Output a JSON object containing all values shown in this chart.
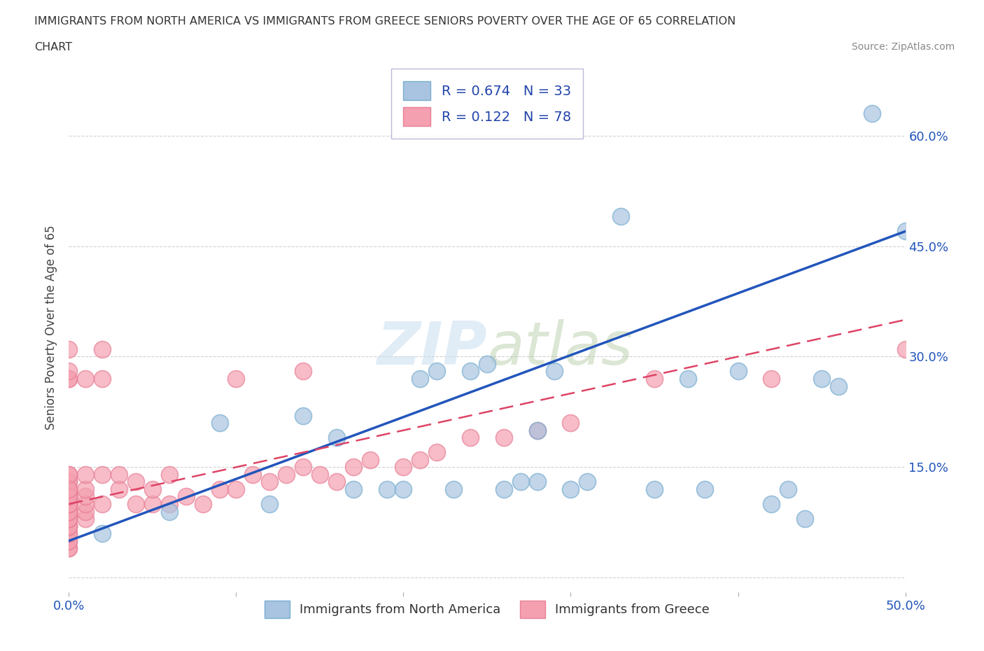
{
  "title_line1": "IMMIGRANTS FROM NORTH AMERICA VS IMMIGRANTS FROM GREECE SENIORS POVERTY OVER THE AGE OF 65 CORRELATION",
  "title_line2": "CHART",
  "source": "Source: ZipAtlas.com",
  "ylabel": "Seniors Poverty Over the Age of 65",
  "xlim": [
    0.0,
    0.5
  ],
  "ylim": [
    -0.02,
    0.7
  ],
  "yticks": [
    0.0,
    0.15,
    0.3,
    0.45,
    0.6
  ],
  "ytick_labels": [
    "",
    "15.0%",
    "30.0%",
    "45.0%",
    "60.0%"
  ],
  "xtick_labels": [
    "0.0%",
    "50.0%"
  ],
  "legend_blue_R": "0.674",
  "legend_blue_N": "33",
  "legend_pink_R": "0.122",
  "legend_pink_N": "78",
  "watermark_text": "ZIPatlas",
  "blue_color": "#a8c4e0",
  "pink_color": "#f4a0b0",
  "blue_edge_color": "#7aaed0",
  "pink_edge_color": "#e88098",
  "blue_line_color": "#2255bb",
  "pink_line_color": "#dd4466",
  "blue_scatter_x": [
    0.02,
    0.06,
    0.09,
    0.12,
    0.14,
    0.16,
    0.17,
    0.19,
    0.2,
    0.21,
    0.22,
    0.23,
    0.24,
    0.25,
    0.26,
    0.27,
    0.28,
    0.28,
    0.29,
    0.3,
    0.31,
    0.33,
    0.35,
    0.37,
    0.38,
    0.4,
    0.42,
    0.43,
    0.44,
    0.45,
    0.46,
    0.48,
    0.5
  ],
  "blue_scatter_y": [
    0.06,
    0.09,
    0.21,
    0.1,
    0.22,
    0.19,
    0.12,
    0.12,
    0.12,
    0.27,
    0.28,
    0.12,
    0.28,
    0.29,
    0.12,
    0.13,
    0.2,
    0.13,
    0.28,
    0.12,
    0.13,
    0.49,
    0.12,
    0.27,
    0.12,
    0.28,
    0.1,
    0.12,
    0.08,
    0.27,
    0.26,
    0.63,
    0.47
  ],
  "pink_scatter_x": [
    0.0,
    0.0,
    0.0,
    0.0,
    0.0,
    0.0,
    0.0,
    0.0,
    0.0,
    0.0,
    0.0,
    0.0,
    0.0,
    0.0,
    0.0,
    0.0,
    0.0,
    0.0,
    0.0,
    0.0,
    0.0,
    0.0,
    0.0,
    0.0,
    0.0,
    0.0,
    0.0,
    0.0,
    0.0,
    0.0,
    0.0,
    0.0,
    0.0,
    0.0,
    0.0,
    0.01,
    0.01,
    0.01,
    0.01,
    0.01,
    0.01,
    0.01,
    0.02,
    0.02,
    0.02,
    0.02,
    0.03,
    0.03,
    0.04,
    0.04,
    0.05,
    0.05,
    0.06,
    0.06,
    0.07,
    0.08,
    0.09,
    0.1,
    0.1,
    0.11,
    0.12,
    0.13,
    0.14,
    0.14,
    0.15,
    0.16,
    0.17,
    0.18,
    0.2,
    0.21,
    0.22,
    0.24,
    0.26,
    0.28,
    0.3,
    0.35,
    0.42,
    0.5
  ],
  "pink_scatter_y": [
    0.04,
    0.04,
    0.05,
    0.05,
    0.06,
    0.06,
    0.07,
    0.07,
    0.07,
    0.08,
    0.08,
    0.08,
    0.09,
    0.09,
    0.09,
    0.1,
    0.1,
    0.1,
    0.11,
    0.11,
    0.11,
    0.12,
    0.12,
    0.12,
    0.13,
    0.13,
    0.14,
    0.14,
    0.31,
    0.27,
    0.27,
    0.1,
    0.11,
    0.12,
    0.28,
    0.08,
    0.09,
    0.1,
    0.11,
    0.12,
    0.27,
    0.14,
    0.1,
    0.14,
    0.27,
    0.31,
    0.12,
    0.14,
    0.1,
    0.13,
    0.1,
    0.12,
    0.1,
    0.14,
    0.11,
    0.1,
    0.12,
    0.12,
    0.27,
    0.14,
    0.13,
    0.14,
    0.15,
    0.28,
    0.14,
    0.13,
    0.15,
    0.16,
    0.15,
    0.16,
    0.17,
    0.19,
    0.19,
    0.2,
    0.21,
    0.27,
    0.27,
    0.31
  ],
  "blue_line_x0": 0.0,
  "blue_line_y0": 0.05,
  "blue_line_x1": 0.5,
  "blue_line_y1": 0.47,
  "pink_line_x0": 0.0,
  "pink_line_y0": 0.1,
  "pink_line_x1": 0.5,
  "pink_line_y1": 0.35,
  "background_color": "#ffffff",
  "grid_color": "#cccccc"
}
